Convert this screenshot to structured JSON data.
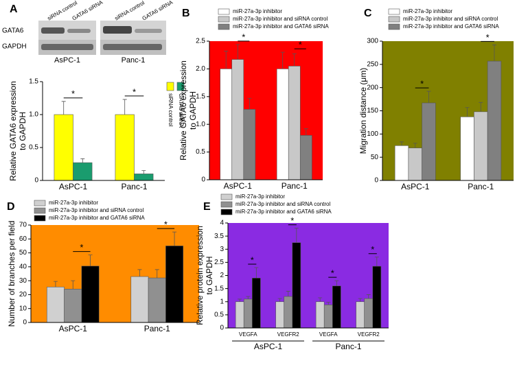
{
  "blot": {
    "panel": "A",
    "lanes": [
      "siRNA control",
      "GATA6 siRNA",
      "siRNA control",
      "GATA6 siRNA"
    ],
    "rows": [
      "GATA6",
      "GAPDH"
    ],
    "cells": [
      "AsPC-1",
      "Panc-1"
    ]
  },
  "chart_data": [
    {
      "type": "bar",
      "panel": "A",
      "ylabel": [
        "Relative GATA6 expression",
        "to GAPDH"
      ],
      "categories": [
        "AsPC-1",
        "Panc-1"
      ],
      "series": [
        {
          "name": "siRNA control",
          "color": "#ffff00",
          "values": [
            1.0,
            1.0
          ],
          "errors": [
            0.2,
            0.23
          ]
        },
        {
          "name": "GATA6 siRNA",
          "color": "#1a9c6e",
          "values": [
            0.27,
            0.1
          ],
          "errors": [
            0.06,
            0.05
          ]
        }
      ],
      "significance": [
        "*",
        "*"
      ],
      "ylim": [
        0,
        1.5
      ],
      "yticks": [
        0,
        0.5,
        {
          "value": 1,
          "label": "1.0"
        },
        1.5
      ],
      "background": "#ffffff"
    },
    {
      "type": "bar",
      "panel": "B",
      "ylabel": [
        "Relative GATA6 expression",
        "to GAPDH"
      ],
      "categories": [
        "AsPC-1",
        "Panc-1"
      ],
      "series": [
        {
          "name": "miR-27a-3p inhibitor",
          "color": "#ffffff",
          "values": [
            2.0,
            2.0
          ],
          "errors": [
            0.32,
            0.3
          ]
        },
        {
          "name": "miR-27a-3p inhibitor and siRNA control",
          "color": "#c8c8c8",
          "values": [
            2.17,
            2.05
          ],
          "errors": [
            0.27,
            0.22
          ]
        },
        {
          "name": "miR-27a-3p inhibitor and GATA6 siRNA",
          "color": "#808080",
          "values": [
            1.27,
            0.8
          ],
          "errors": [
            0.2,
            0.12
          ]
        }
      ],
      "significance": [
        "*",
        "*"
      ],
      "ylim": [
        0,
        2.5
      ],
      "yticks": [
        0,
        0.5,
        {
          "value": 1,
          "label": "1.0"
        },
        1.5,
        {
          "value": 2,
          "label": "2.0"
        },
        2.5
      ],
      "background": "#ff0000"
    },
    {
      "type": "bar",
      "panel": "C",
      "ylabel": [
        "Migration distance (μm)"
      ],
      "categories": [
        "AsPC-1",
        "Panc-1"
      ],
      "series": [
        {
          "name": "miR-27a-3p inhibitor",
          "color": "#ffffff",
          "values": [
            75,
            137
          ],
          "errors": [
            8,
            20
          ]
        },
        {
          "name": "miR-27a-3p inhibitor and siRNA control",
          "color": "#c8c8c8",
          "values": [
            70,
            148
          ],
          "errors": [
            10,
            20
          ]
        },
        {
          "name": "miR-27a-3p inhibitor and GATA6 siRNA",
          "color": "#808080",
          "values": [
            167,
            257
          ],
          "errors": [
            25,
            35
          ]
        }
      ],
      "significance": [
        "*",
        "*"
      ],
      "ylim": [
        0,
        300
      ],
      "yticks": [
        0,
        50,
        100,
        150,
        200,
        250,
        300
      ],
      "background": "#808000"
    },
    {
      "type": "bar",
      "panel": "D",
      "ylabel": [
        "Number of branches per field"
      ],
      "categories": [
        "AsPC-1",
        "Panc-1"
      ],
      "series": [
        {
          "name": "miR-27a-3p inhibitor",
          "color": "#d0d0d0",
          "values": [
            25.5,
            33
          ],
          "errors": [
            4,
            5
          ]
        },
        {
          "name": "miR-27a-3p inhibitor and siRNA control",
          "color": "#909090",
          "values": [
            24,
            32
          ],
          "errors": [
            6,
            6
          ]
        },
        {
          "name": "miR-27a-3p inhibitor and GATA6 siRNA",
          "color": "#000000",
          "values": [
            40.5,
            55
          ],
          "errors": [
            8,
            10
          ]
        }
      ],
      "significance": [
        "*",
        "*"
      ],
      "ylim": [
        0,
        70
      ],
      "yticks": [
        0,
        10,
        20,
        30,
        40,
        50,
        60,
        70
      ],
      "background": "#ff8c00"
    },
    {
      "type": "bar",
      "panel": "E",
      "ylabel": [
        "Relative protein expression",
        "to GAPDH"
      ],
      "categories": [
        "VEGFA",
        "VEGFR2",
        "VEGFA",
        "VEGFR2"
      ],
      "groups": [
        "AsPC-1",
        "Panc-1"
      ],
      "series": [
        {
          "name": "miR-27a-3p inhibitor",
          "color": "#d0d0d0",
          "values": [
            1.0,
            1.0,
            1.0,
            1.0
          ],
          "errors": [
            0.1,
            0.12,
            0.15,
            0.12
          ]
        },
        {
          "name": "miR-27a-3p inhibitor and siRNA control",
          "color": "#909090",
          "values": [
            1.1,
            1.2,
            0.88,
            1.12
          ],
          "errors": [
            0.1,
            0.2,
            0.1,
            0.15
          ]
        },
        {
          "name": "miR-27a-3p inhibitor and GATA6 siRNA",
          "color": "#000000",
          "values": [
            1.9,
            3.25,
            1.6,
            2.35
          ],
          "errors": [
            0.4,
            0.55,
            0.2,
            0.35
          ]
        }
      ],
      "significance": [
        "*",
        "*",
        "*",
        "*"
      ],
      "ylim": [
        0,
        4
      ],
      "yticks": [
        0,
        0.5,
        1,
        1.5,
        2,
        2.5,
        3,
        3.5,
        4
      ],
      "background": "#8a2be2"
    }
  ]
}
